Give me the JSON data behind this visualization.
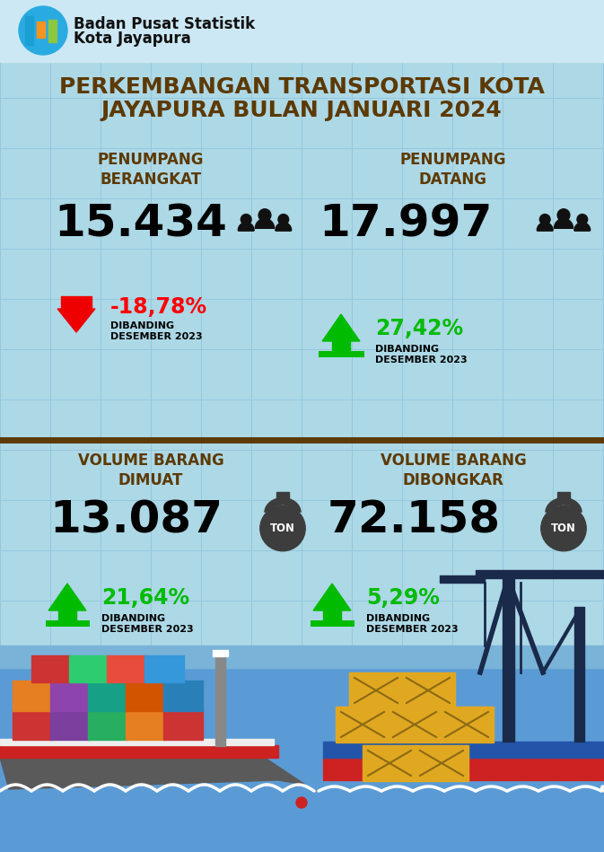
{
  "bg_color": "#add8e6",
  "grid_color": "#94c8de",
  "title_line1": "PERKEMBANGAN TRANSPORTASI KOTA",
  "title_line2": "JAYAPURA BULAN JANUARI 2024",
  "title_color": "#5c3a00",
  "divider_color": "#5c3a00",
  "bps_name_line1": "Badan Pusat Statistik",
  "bps_name_line2": "Kota Jayapura",
  "section1_label_left": "PENUMPANG\nBERANGKAT",
  "section1_value_left": "15.434",
  "section1_label_right": "PENUMPANG\nDATANG",
  "section1_value_right": "17.997",
  "section1_pct_left": "-18,78%",
  "section1_pct_left_color": "#ff0000",
  "section1_pct_right": "27,42%",
  "section1_pct_right_color": "#00bb00",
  "section2_label_left": "VOLUME BARANG\nDIMUAT",
  "section2_value_left": "13.087",
  "section2_label_right": "VOLUME BARANG\nDIBONGKAR",
  "section2_value_right": "72.158",
  "section2_pct_left": "21,64%",
  "section2_pct_left_color": "#00bb00",
  "section2_pct_right": "5,29%",
  "section2_pct_right_color": "#00bb00",
  "sub_text": "DIBANDING\nDESEMBER 2023",
  "label_color": "#5c3a00",
  "value_color": "#000000",
  "sub_text_color": "#000000",
  "sea_color": "#5b9bd5",
  "sea_color2": "#7ab3d8"
}
